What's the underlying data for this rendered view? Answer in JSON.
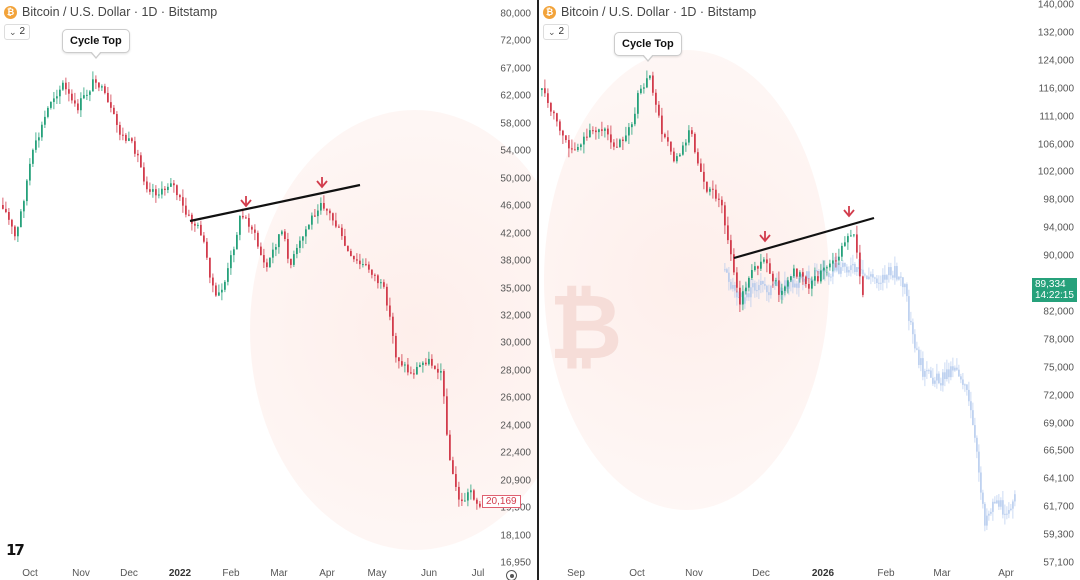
{
  "left": {
    "symbol_title": "Bitcoin / U.S. Dollar · 1D · Bitstamp",
    "collapse_count": "2",
    "annotation": "Cycle Top",
    "price_ticks": [
      "80,000",
      "72,000",
      "67,000",
      "62,000",
      "58,000",
      "54,000",
      "50,000",
      "46,000",
      "42,000",
      "38,000",
      "35,000",
      "32,000",
      "30,000",
      "28,000",
      "26,000",
      "24,000",
      "22,400",
      "20,900",
      "19,500",
      "18,100",
      "16,950"
    ],
    "current_price": "20,169",
    "time_ticks": [
      "Oct",
      "Nov",
      "Dec",
      "2022",
      "Feb",
      "Mar",
      "Apr",
      "May",
      "Jun",
      "Jul"
    ]
  },
  "right": {
    "symbol_title": "Bitcoin / U.S. Dollar · 1D · Bitstamp",
    "collapse_count": "2",
    "annotation": "Cycle Top",
    "price_ticks": [
      "140,000",
      "132,000",
      "124,000",
      "116,000",
      "111,000",
      "106,000",
      "102,000",
      "98,000",
      "94,000",
      "90,000",
      "86,000",
      "82,000",
      "78,000",
      "75,000",
      "72,000",
      "69,000",
      "66,500",
      "64,100",
      "61,700",
      "59,300",
      "57,100"
    ],
    "current_price": "89,334",
    "countdown": "14:22:15",
    "time_ticks": [
      "Sep",
      "Oct",
      "Nov",
      "Dec",
      "2026",
      "Feb",
      "Mar",
      "Apr"
    ]
  },
  "colors": {
    "up": "#26a17b",
    "down": "#d23c4c",
    "projection": "#aac3ec",
    "trendline": "#111111",
    "arrow": "#d23c4c"
  },
  "icons": {
    "symbol": "bitcoin-icon",
    "collapse": "chevron-down-icon",
    "logo": "tradingview-logo-icon",
    "settings": "gear-icon"
  }
}
